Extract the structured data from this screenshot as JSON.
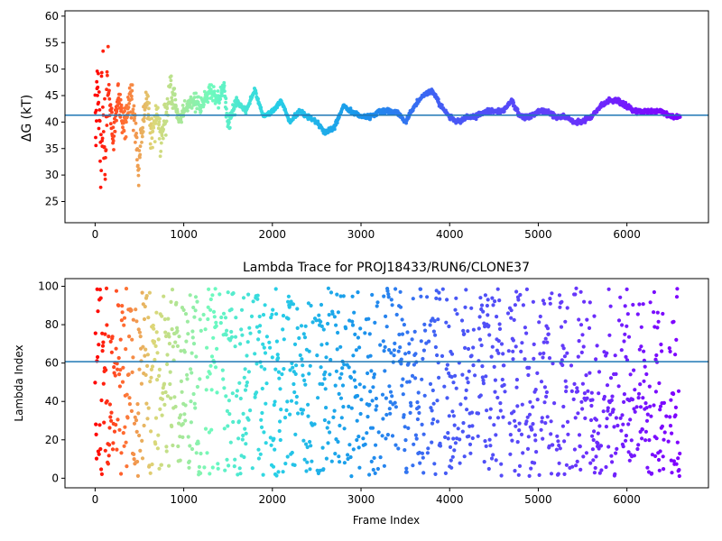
{
  "chart_data": [
    {
      "type": "scatter",
      "title": "",
      "xlabel": "",
      "ylabel": "ΔG (kT)",
      "xlim": [
        -340,
        6920
      ],
      "ylim": [
        21,
        61
      ],
      "xticks": [
        0,
        1000,
        2000,
        3000,
        4000,
        5000,
        6000
      ],
      "yticks": [
        25,
        30,
        35,
        40,
        45,
        50,
        55,
        60
      ],
      "hline": 41.3,
      "hline_color": "#1f77b4",
      "colormap": "rainbow (reversed: early frames red, late frames violet)",
      "grid": false,
      "trend_points": [
        [
          0,
          40
        ],
        [
          30,
          48
        ],
        [
          60,
          36
        ],
        [
          90,
          44
        ],
        [
          120,
          33
        ],
        [
          150,
          47
        ],
        [
          200,
          36
        ],
        [
          260,
          45
        ],
        [
          330,
          38
        ],
        [
          400,
          46
        ],
        [
          450,
          40
        ],
        [
          490,
          30
        ],
        [
          520,
          37
        ],
        [
          580,
          44
        ],
        [
          640,
          38
        ],
        [
          700,
          42
        ],
        [
          750,
          37
        ],
        [
          800,
          41
        ],
        [
          850,
          47
        ],
        [
          900,
          44
        ],
        [
          950,
          40
        ],
        [
          1000,
          42
        ],
        [
          1100,
          44
        ],
        [
          1200,
          43
        ],
        [
          1300,
          46
        ],
        [
          1400,
          44
        ],
        [
          1450,
          47
        ],
        [
          1500,
          40
        ],
        [
          1600,
          44
        ],
        [
          1700,
          42
        ],
        [
          1800,
          46
        ],
        [
          1900,
          41
        ],
        [
          2000,
          42
        ],
        [
          2100,
          44
        ],
        [
          2200,
          40
        ],
        [
          2300,
          42
        ],
        [
          2400,
          41
        ],
        [
          2500,
          40
        ],
        [
          2600,
          38
        ],
        [
          2700,
          39
        ],
        [
          2800,
          43
        ],
        [
          2900,
          42
        ],
        [
          3000,
          41
        ],
        [
          3100,
          41
        ],
        [
          3200,
          42
        ],
        [
          3300,
          42
        ],
        [
          3400,
          42
        ],
        [
          3500,
          40
        ],
        [
          3600,
          43
        ],
        [
          3700,
          45
        ],
        [
          3800,
          46
        ],
        [
          3900,
          43
        ],
        [
          4000,
          41
        ],
        [
          4100,
          40
        ],
        [
          4200,
          41
        ],
        [
          4300,
          41
        ],
        [
          4400,
          42
        ],
        [
          4500,
          42
        ],
        [
          4600,
          42
        ],
        [
          4700,
          44
        ],
        [
          4800,
          41
        ],
        [
          4900,
          41
        ],
        [
          5000,
          42
        ],
        [
          5100,
          42
        ],
        [
          5200,
          41
        ],
        [
          5300,
          41
        ],
        [
          5400,
          40
        ],
        [
          5500,
          40
        ],
        [
          5600,
          41
        ],
        [
          5700,
          43
        ],
        [
          5800,
          44
        ],
        [
          5900,
          44
        ],
        [
          6000,
          43
        ],
        [
          6100,
          42
        ],
        [
          6200,
          42
        ],
        [
          6300,
          42
        ],
        [
          6400,
          42
        ],
        [
          6500,
          41
        ],
        [
          6600,
          41
        ]
      ]
    },
    {
      "type": "scatter",
      "title": "Lambda Trace for PROJ18433/RUN6/CLONE37",
      "xlabel": "Frame Index",
      "ylabel": "Lambda Index",
      "xlim": [
        -340,
        6920
      ],
      "ylim": [
        -5,
        104
      ],
      "xticks": [
        0,
        1000,
        2000,
        3000,
        4000,
        5000,
        6000
      ],
      "yticks": [
        0,
        20,
        40,
        60,
        80,
        100
      ],
      "hline": 60.7,
      "hline_color": "#1f77b4",
      "colormap": "rainbow (reversed: early frames red, late frames violet)",
      "value_range": [
        1,
        99
      ],
      "frame_range": [
        0,
        6600
      ],
      "grid": false
    }
  ]
}
